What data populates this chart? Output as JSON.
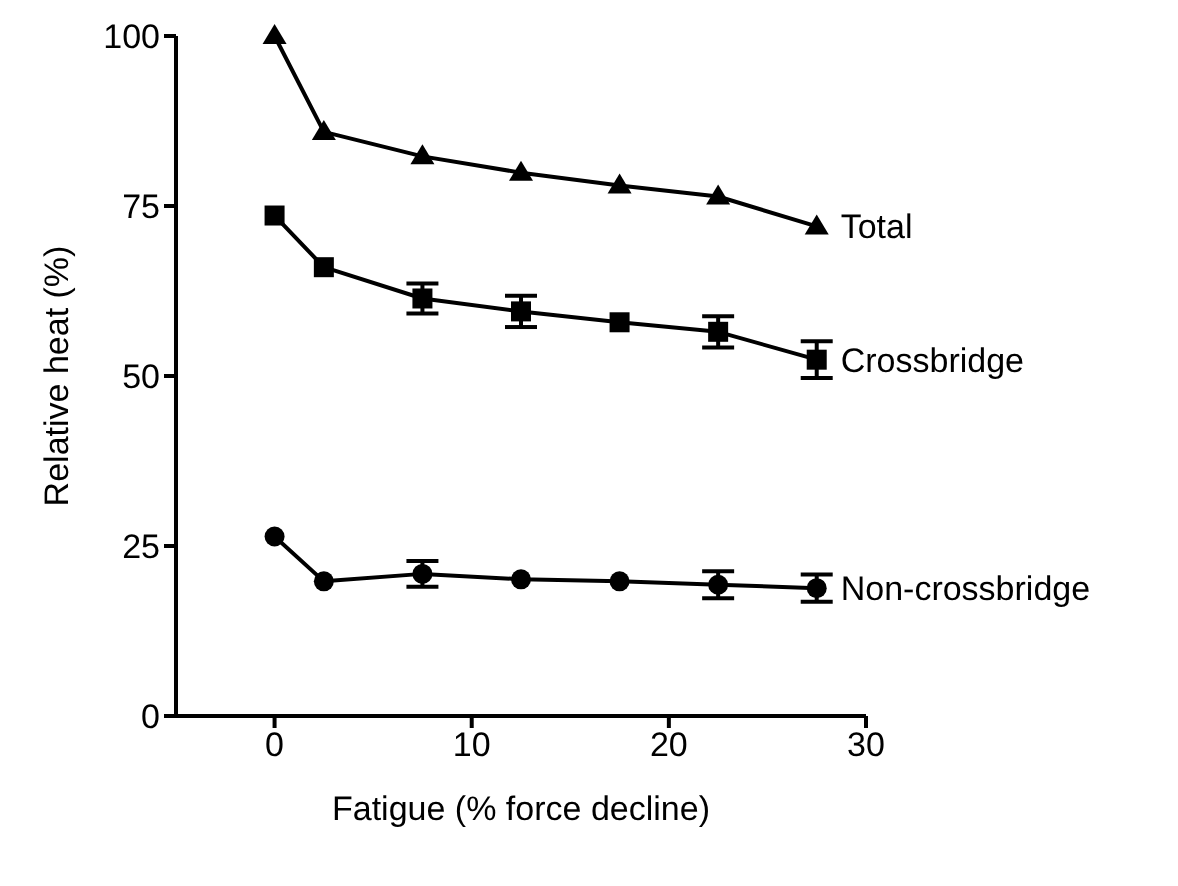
{
  "chart_data": {
    "type": "line",
    "xlabel": "Fatigue (% force decline)",
    "ylabel": "Relative heat (%)",
    "x": [
      0,
      2.5,
      7.5,
      12.5,
      17.5,
      22.5,
      27.5
    ],
    "xlim": [
      -5,
      30
    ],
    "xticks": [
      0,
      10,
      20,
      30
    ],
    "ylim": [
      0,
      100
    ],
    "yticks": [
      0,
      25,
      50,
      75,
      100
    ],
    "grid": false,
    "line_style": "solid",
    "series": [
      {
        "name": "Total",
        "color": "#000000",
        "marker": "triangle",
        "values": [
          100,
          85.9,
          82.3,
          79.9,
          78,
          76.4,
          72
        ]
      },
      {
        "name": "Crossbridge",
        "color": "#000000",
        "marker": "square",
        "values": [
          73.6,
          66,
          61.4,
          59.5,
          57.9,
          56.5,
          52.4
        ],
        "errors": [
          null,
          null,
          2.2,
          2.3,
          null,
          2.3,
          2.7
        ]
      },
      {
        "name": "Non-crossbridge",
        "color": "#000000",
        "marker": "circle",
        "values": [
          26.4,
          19.8,
          20.9,
          20.1,
          19.8,
          19.3,
          18.8
        ],
        "errors": [
          null,
          null,
          1.9,
          null,
          null,
          2,
          2
        ]
      }
    ]
  }
}
